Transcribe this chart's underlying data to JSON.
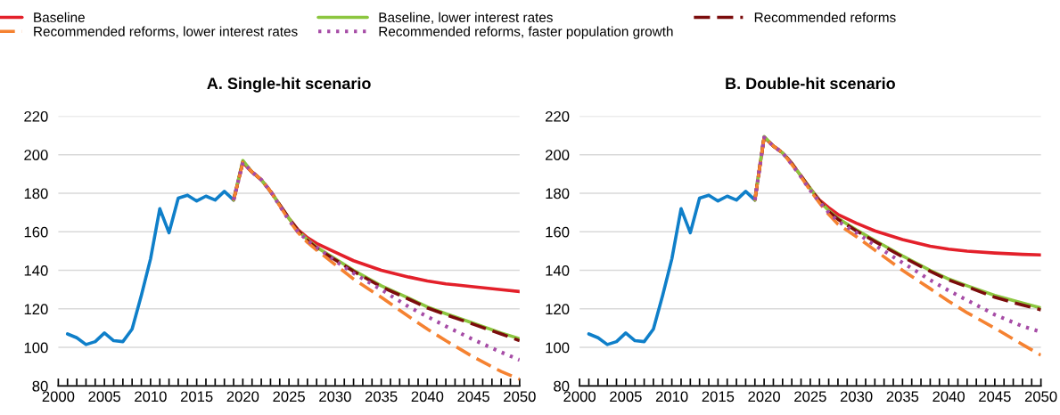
{
  "chart_data": [
    {
      "type": "line",
      "title": "A. Single-hit scenario",
      "xlim": [
        2000,
        2050
      ],
      "ylim": [
        80,
        220
      ],
      "yticks": [
        80,
        100,
        120,
        140,
        160,
        180,
        200,
        220
      ],
      "xticks": [
        2000,
        {
          "value": 2001,
          "label": null
        },
        {
          "value": 2002,
          "label": null
        },
        {
          "value": 2003,
          "label": null
        },
        {
          "value": 2004,
          "label": null
        },
        2005,
        {
          "value": 2006,
          "label": null
        },
        {
          "value": 2007,
          "label": null
        },
        {
          "value": 2008,
          "label": null
        },
        {
          "value": 2009,
          "label": null
        },
        2010,
        {
          "value": 2011,
          "label": null
        },
        {
          "value": 2012,
          "label": null
        },
        {
          "value": 2013,
          "label": null
        },
        {
          "value": 2014,
          "label": null
        },
        2015,
        {
          "value": 2016,
          "label": null
        },
        {
          "value": 2017,
          "label": null
        },
        {
          "value": 2018,
          "label": null
        },
        {
          "value": 2019,
          "label": null
        },
        2020,
        {
          "value": 2021,
          "label": null
        },
        {
          "value": 2022,
          "label": null
        },
        {
          "value": 2023,
          "label": null
        },
        {
          "value": 2024,
          "label": null
        },
        2025,
        {
          "value": 2026,
          "label": null
        },
        {
          "value": 2027,
          "label": null
        },
        {
          "value": 2028,
          "label": null
        },
        {
          "value": 2029,
          "label": null
        },
        2030,
        {
          "value": 2031,
          "label": null
        },
        {
          "value": 2032,
          "label": null
        },
        {
          "value": 2033,
          "label": null
        },
        {
          "value": 2034,
          "label": null
        },
        2035,
        {
          "value": 2036,
          "label": null
        },
        {
          "value": 2037,
          "label": null
        },
        {
          "value": 2038,
          "label": null
        },
        {
          "value": 2039,
          "label": null
        },
        2040,
        {
          "value": 2041,
          "label": null
        },
        {
          "value": 2042,
          "label": null
        },
        {
          "value": 2043,
          "label": null
        },
        {
          "value": 2044,
          "label": null
        },
        2045,
        {
          "value": 2046,
          "label": null
        },
        {
          "value": 2047,
          "label": null
        },
        {
          "value": 2048,
          "label": null
        },
        {
          "value": 2049,
          "label": null
        },
        2050
      ],
      "grid": "y",
      "legend": "top",
      "marker": "none",
      "series": [
        {
          "color": "#0f7fc9",
          "line_style": "solid",
          "x": [
            2001,
            2002,
            2003,
            2004,
            2005,
            2006,
            2007,
            2008,
            2009,
            2010,
            2011,
            2012,
            2013,
            2014,
            2015,
            2016,
            2017,
            2018,
            2019
          ],
          "values": [
            107,
            105,
            101.5,
            103,
            107.5,
            103.5,
            103,
            109.5,
            127,
            146,
            172,
            159.5,
            177.5,
            179,
            176,
            178.5,
            176.5,
            181,
            176.5
          ]
        },
        {
          "name": "Baseline",
          "color": "#e3202a",
          "line_style": "solid",
          "x": [
            2019,
            2020,
            2021,
            2022,
            2023,
            2024,
            2025,
            2026,
            2027,
            2028,
            2030,
            2032,
            2035,
            2038,
            2040,
            2042,
            2045,
            2048,
            2050
          ],
          "values": [
            176.5,
            196,
            191,
            187,
            181,
            174,
            167,
            161,
            157,
            154,
            149.5,
            145,
            140,
            136.5,
            134.5,
            133,
            131.5,
            130,
            129
          ]
        },
        {
          "name": "Baseline, lower interest rates",
          "color": "#8cc63f",
          "line_style": "solid",
          "x": [
            2019,
            2020,
            2021,
            2022,
            2023,
            2024,
            2025,
            2026,
            2027,
            2028,
            2030,
            2032,
            2035,
            2038,
            2040,
            2042,
            2045,
            2048,
            2050
          ],
          "values": [
            176.5,
            197,
            191,
            187,
            181,
            174,
            167,
            160.5,
            156,
            152,
            146,
            140,
            132,
            125.5,
            121,
            117.5,
            112.5,
            107.5,
            104.5
          ]
        },
        {
          "name": "Recommended reforms",
          "color": "#7b0c0c",
          "line_style": "dashed",
          "x": [
            2019,
            2020,
            2021,
            2022,
            2023,
            2024,
            2025,
            2026,
            2027,
            2028,
            2030,
            2032,
            2035,
            2038,
            2040,
            2042,
            2045,
            2048,
            2050
          ],
          "values": [
            176.5,
            196,
            191,
            187,
            181,
            174,
            167,
            160.5,
            155.5,
            151.5,
            145.5,
            139.5,
            131.5,
            125,
            120.5,
            117,
            112,
            107,
            103.5
          ]
        },
        {
          "name": "Recommended reforms, lower interest rates",
          "color": "#f58231",
          "line_style": "dashed",
          "x": [
            2019,
            2020,
            2021,
            2022,
            2023,
            2024,
            2025,
            2026,
            2027,
            2028,
            2030,
            2032,
            2035,
            2038,
            2040,
            2042,
            2045,
            2048,
            2050
          ],
          "values": [
            176.5,
            196,
            191,
            187,
            181,
            173.5,
            166,
            159.5,
            154.5,
            150.5,
            143,
            135.5,
            126,
            116,
            109.5,
            103.5,
            95,
            87.5,
            83.5
          ]
        },
        {
          "name": "Recommended reforms, faster population growth",
          "color": "#a64ca6",
          "line_style": "dotted",
          "x": [
            2019,
            2020,
            2021,
            2022,
            2023,
            2024,
            2025,
            2026,
            2027,
            2028,
            2030,
            2032,
            2035,
            2038,
            2040,
            2042,
            2045,
            2048,
            2050
          ],
          "values": [
            176.5,
            196,
            191,
            187,
            181,
            173.5,
            166,
            160,
            155.5,
            152,
            145,
            138.5,
            130,
            121,
            116,
            111,
            104,
            97.5,
            93.5
          ]
        }
      ]
    },
    {
      "type": "line",
      "title": "B. Double-hit scenario",
      "xlim": [
        2000,
        2050
      ],
      "ylim": [
        80,
        220
      ],
      "yticks": [
        80,
        100,
        120,
        140,
        160,
        180,
        200,
        220
      ],
      "xticks": [
        2000,
        {
          "value": 2001,
          "label": null
        },
        {
          "value": 2002,
          "label": null
        },
        {
          "value": 2003,
          "label": null
        },
        {
          "value": 2004,
          "label": null
        },
        2005,
        {
          "value": 2006,
          "label": null
        },
        {
          "value": 2007,
          "label": null
        },
        {
          "value": 2008,
          "label": null
        },
        {
          "value": 2009,
          "label": null
        },
        2010,
        {
          "value": 2011,
          "label": null
        },
        {
          "value": 2012,
          "label": null
        },
        {
          "value": 2013,
          "label": null
        },
        {
          "value": 2014,
          "label": null
        },
        2015,
        {
          "value": 2016,
          "label": null
        },
        {
          "value": 2017,
          "label": null
        },
        {
          "value": 2018,
          "label": null
        },
        {
          "value": 2019,
          "label": null
        },
        2020,
        {
          "value": 2021,
          "label": null
        },
        {
          "value": 2022,
          "label": null
        },
        {
          "value": 2023,
          "label": null
        },
        {
          "value": 2024,
          "label": null
        },
        2025,
        {
          "value": 2026,
          "label": null
        },
        {
          "value": 2027,
          "label": null
        },
        {
          "value": 2028,
          "label": null
        },
        {
          "value": 2029,
          "label": null
        },
        2030,
        {
          "value": 2031,
          "label": null
        },
        {
          "value": 2032,
          "label": null
        },
        {
          "value": 2033,
          "label": null
        },
        {
          "value": 2034,
          "label": null
        },
        2035,
        {
          "value": 2036,
          "label": null
        },
        {
          "value": 2037,
          "label": null
        },
        {
          "value": 2038,
          "label": null
        },
        {
          "value": 2039,
          "label": null
        },
        2040,
        {
          "value": 2041,
          "label": null
        },
        {
          "value": 2042,
          "label": null
        },
        {
          "value": 2043,
          "label": null
        },
        {
          "value": 2044,
          "label": null
        },
        2045,
        {
          "value": 2046,
          "label": null
        },
        {
          "value": 2047,
          "label": null
        },
        {
          "value": 2048,
          "label": null
        },
        {
          "value": 2049,
          "label": null
        },
        2050
      ],
      "grid": "y",
      "marker": "none",
      "series": [
        {
          "color": "#0f7fc9",
          "line_style": "solid",
          "x": [
            2001,
            2002,
            2003,
            2004,
            2005,
            2006,
            2007,
            2008,
            2009,
            2010,
            2011,
            2012,
            2013,
            2014,
            2015,
            2016,
            2017,
            2018,
            2019
          ],
          "values": [
            107,
            105,
            101.5,
            103,
            107.5,
            103.5,
            103,
            109.5,
            127,
            146,
            172,
            159.5,
            177.5,
            179,
            176,
            178.5,
            176.5,
            181,
            176.5
          ]
        },
        {
          "color": "#e3202a",
          "line_style": "solid",
          "x": [
            2019,
            2020,
            2021,
            2022,
            2023,
            2024,
            2025,
            2026,
            2027,
            2028,
            2030,
            2032,
            2035,
            2038,
            2040,
            2042,
            2045,
            2048,
            2050
          ],
          "values": [
            176.5,
            209,
            204.5,
            201,
            195.5,
            189,
            182.5,
            176.5,
            172.5,
            169,
            164.5,
            160.5,
            156,
            152.5,
            151,
            150,
            149,
            148.3,
            148
          ]
        },
        {
          "color": "#8cc63f",
          "line_style": "solid",
          "x": [
            2019,
            2020,
            2021,
            2022,
            2023,
            2024,
            2025,
            2026,
            2027,
            2028,
            2030,
            2032,
            2035,
            2038,
            2040,
            2042,
            2045,
            2048,
            2050
          ],
          "values": [
            176.5,
            209.5,
            204.5,
            201,
            195.5,
            189,
            182.5,
            176,
            171,
            167,
            161,
            155.5,
            147.5,
            140,
            135.5,
            132,
            127,
            123,
            120.5
          ]
        },
        {
          "color": "#7b0c0c",
          "line_style": "dashed",
          "x": [
            2019,
            2020,
            2021,
            2022,
            2023,
            2024,
            2025,
            2026,
            2027,
            2028,
            2030,
            2032,
            2035,
            2038,
            2040,
            2042,
            2045,
            2048,
            2050
          ],
          "values": [
            176.5,
            209,
            204.5,
            201,
            195.5,
            189,
            182,
            176,
            170.5,
            166.5,
            160.5,
            155,
            147,
            139.5,
            135,
            131.5,
            126,
            122,
            119.5
          ]
        },
        {
          "color": "#f58231",
          "line_style": "dashed",
          "x": [
            2019,
            2020,
            2021,
            2022,
            2023,
            2024,
            2025,
            2026,
            2027,
            2028,
            2030,
            2032,
            2035,
            2038,
            2040,
            2042,
            2045,
            2048,
            2050
          ],
          "values": [
            176.5,
            209,
            204.5,
            201,
            195,
            188.5,
            181.5,
            175,
            169,
            164,
            157.5,
            150.5,
            140,
            130.5,
            124,
            118,
            110,
            101.5,
            96
          ]
        },
        {
          "color": "#a64ca6",
          "line_style": "dotted",
          "x": [
            2019,
            2020,
            2021,
            2022,
            2023,
            2024,
            2025,
            2026,
            2027,
            2028,
            2030,
            2032,
            2035,
            2038,
            2040,
            2042,
            2045,
            2048,
            2050
          ],
          "values": [
            176.5,
            209,
            204.5,
            201,
            195,
            188.5,
            181.5,
            175.5,
            170,
            165.5,
            159.5,
            153,
            144,
            135,
            129.5,
            124.5,
            117,
            111,
            108
          ]
        }
      ]
    }
  ]
}
